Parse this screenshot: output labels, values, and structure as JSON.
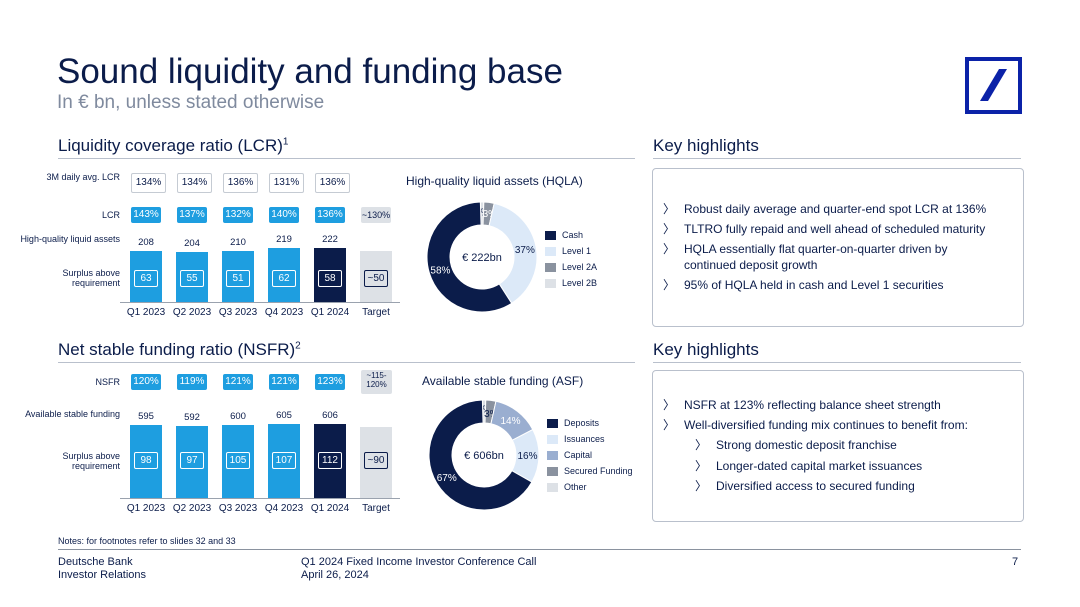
{
  "header": {
    "title": "Sound liquidity and funding base",
    "subtitle": "In € bn, unless stated otherwise"
  },
  "colors": {
    "navy": "#0b1c4a",
    "bright_blue": "#1e9ee0",
    "light_blue": "#dce9f8",
    "mid_gray": "#8a929f",
    "light_gray": "#dde1e6"
  },
  "lcr_section": {
    "heading": "Liquidity coverage ratio (LCR)",
    "heading_sup": "1",
    "row_labels": {
      "daily_avg": "3M daily avg. LCR",
      "lcr": "LCR",
      "hqla": "High-quality liquid assets",
      "surplus": "Surplus above requirement"
    },
    "daily_avg": [
      "134%",
      "134%",
      "136%",
      "131%",
      "136%"
    ],
    "lcr": [
      "143%",
      "137%",
      "132%",
      "140%",
      "136%",
      "~130%"
    ]
  },
  "nsfr_section": {
    "heading": "Net stable funding ratio (NSFR)",
    "heading_sup": "2",
    "row_labels": {
      "nsfr": "NSFR",
      "asf": "Available stable funding",
      "surplus": "Surplus above requirement"
    },
    "nsfr": [
      "120%",
      "119%",
      "121%",
      "121%",
      "123%",
      "~115-120%"
    ]
  },
  "chart_data": [
    {
      "type": "bar",
      "categories": [
        "Q1 2023",
        "Q2 2023",
        "Q3 2023",
        "Q4 2023",
        "Q1 2024",
        "Target"
      ],
      "series": [
        {
          "name": "High-quality liquid assets",
          "values": [
            208,
            204,
            210,
            219,
            222,
            null
          ]
        },
        {
          "name": "Surplus above requirement",
          "values": [
            63,
            55,
            51,
            62,
            58,
            "~50"
          ]
        }
      ]
    },
    {
      "type": "pie",
      "title": "High-quality liquid assets (HQLA)",
      "center_label": "€ 222bn",
      "labels": [
        "Cash",
        "Level 1",
        "Level 2A",
        "Level 2B"
      ],
      "values": [
        58,
        37,
        3,
        1
      ],
      "value_labels": [
        "58%",
        "37%",
        "3%",
        "1%"
      ],
      "colors": [
        "#0b1c4a",
        "#dce9f8",
        "#8a929f",
        "#dde1e6"
      ]
    },
    {
      "type": "bar",
      "categories": [
        "Q1 2023",
        "Q2 2023",
        "Q3 2023",
        "Q4 2023",
        "Q1 2024",
        "Target"
      ],
      "series": [
        {
          "name": "Available stable funding",
          "values": [
            595,
            592,
            600,
            605,
            606,
            null
          ]
        },
        {
          "name": "Surplus above requirement",
          "values": [
            98,
            97,
            105,
            107,
            112,
            "~90"
          ]
        }
      ]
    },
    {
      "type": "pie",
      "title": "Available stable funding (ASF)",
      "center_label": "€ 606bn",
      "labels": [
        "Deposits",
        "Issuances",
        "Capital",
        "Secured Funding",
        "Other"
      ],
      "values": [
        67,
        16,
        14,
        3,
        1
      ],
      "value_labels": [
        "67%",
        "16%",
        "14%",
        "3%",
        "1%"
      ],
      "colors": [
        "#0b1c4a",
        "#dce9f8",
        "#9aaed0",
        "#8a929f",
        "#dde1e6"
      ]
    }
  ],
  "highlights_top": {
    "heading": "Key highlights",
    "items": [
      "Robust daily average and quarter-end spot LCR at 136%",
      "TLTRO fully repaid and well ahead of scheduled maturity",
      "HQLA essentially flat quarter-on-quarter driven by continued deposit growth",
      "95% of HQLA held in cash and Level 1 securities"
    ]
  },
  "highlights_bottom": {
    "heading": "Key highlights",
    "items": [
      "NSFR at 123% reflecting balance sheet strength",
      "Well-diversified funding mix continues to benefit from:"
    ],
    "subitems": [
      "Strong domestic deposit franchise",
      "Longer-dated capital market issuances",
      "Diversified access to secured funding"
    ]
  },
  "icons": {
    "bullet": "chevron-right-icon",
    "logo": "deutsche-bank-logo"
  },
  "notes": "Notes: for footnotes refer to slides 32 and 33",
  "footer": {
    "org_line1": "Deutsche Bank",
    "org_line2": "Investor Relations",
    "event_line1": "Q1 2024 Fixed Income Investor Conference Call",
    "event_line2": "April 26, 2024",
    "page": "7"
  }
}
